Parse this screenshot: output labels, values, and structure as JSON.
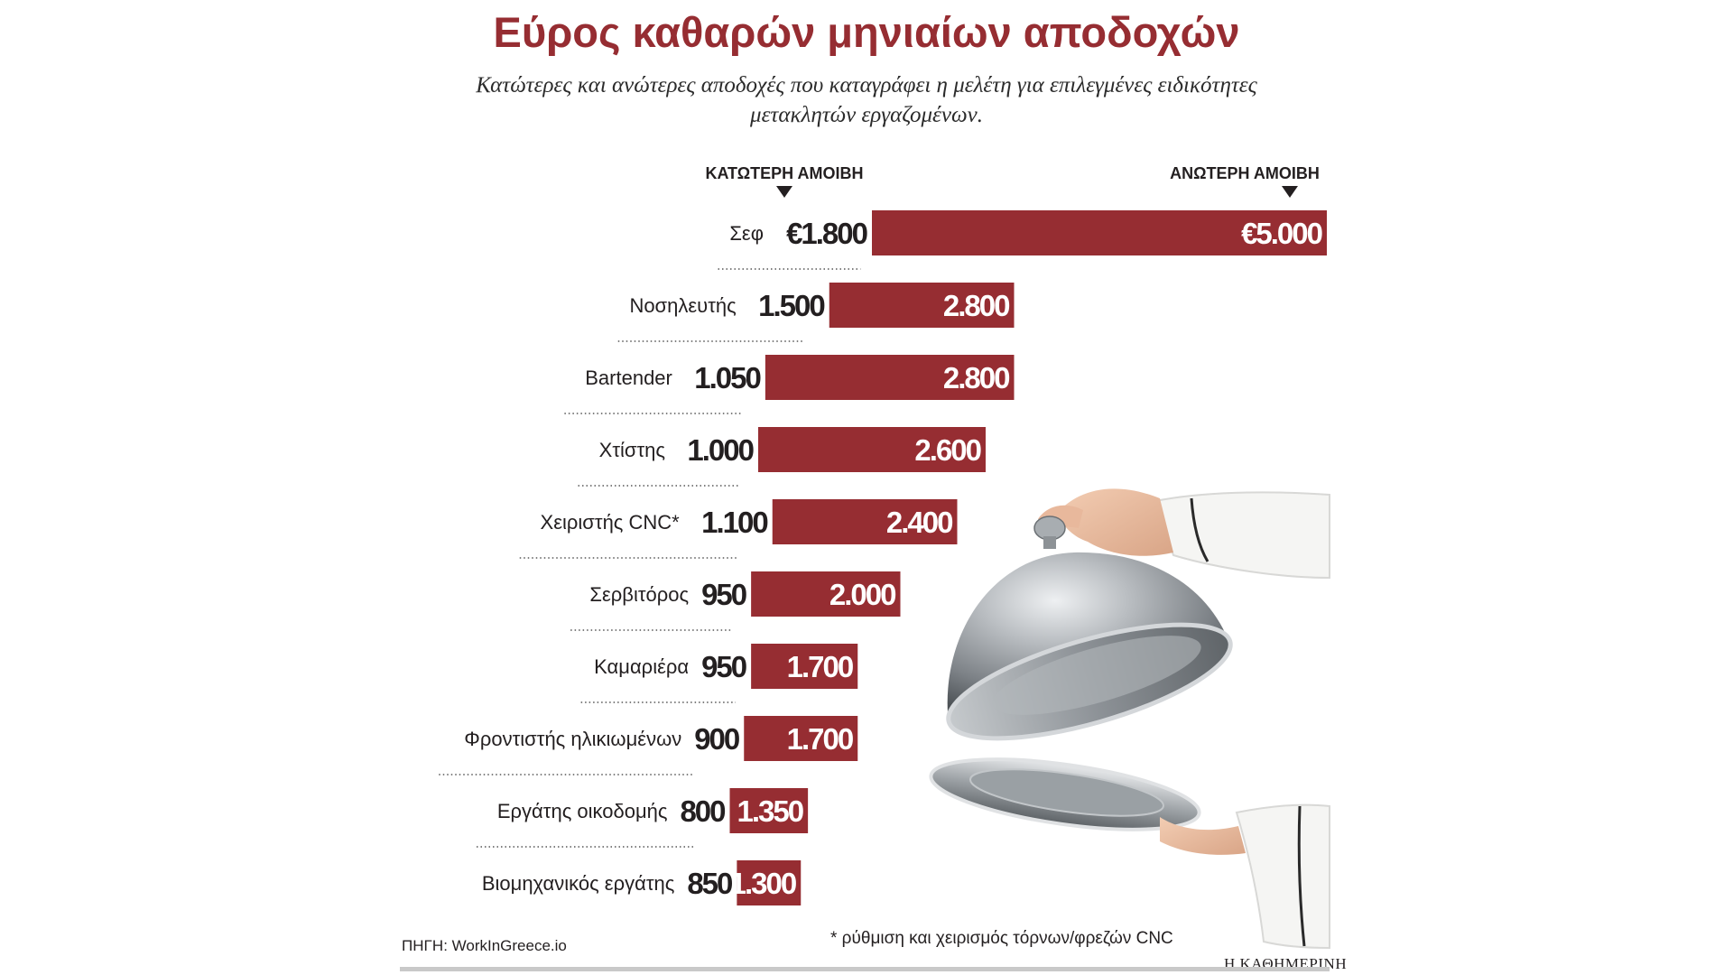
{
  "title": "Εύρος καθαρών μηνιαίων αποδοχών",
  "subtitle": "Κατώτερες και ανώτερες αποδοχές που καταγράφει η μελέτη για επιλεγμένες ειδικότητες μετακλητών εργαζομένων.",
  "source": "ΠΗΓΗ: WorkInGreece.io",
  "footnote": "* ρύθμιση και χειρισμός τόρνων/φρεζών CNC",
  "brand": "Η ΚΑΘΗΜΕΡΙΝΗ",
  "colors": {
    "bar": "#962d32",
    "title": "#962d32"
  },
  "illustration": "hand-lifting-silver-cloche-icon",
  "chart_data": {
    "type": "bar",
    "orientation": "horizontal-range",
    "low_header": "ΚΑΤΩΤΕΡΗ ΑΜΟΙΒΗ",
    "high_header": "ΑΝΩΤΕΡΗ ΑΜΟΙΒΗ",
    "categories": [
      "Σεφ",
      "Νοσηλευτής",
      "Bartender",
      "Χτίστης",
      "Χειριστής CNC*",
      "Σερβιτόρος",
      "Καμαριέρα",
      "Φροντιστής ηλικιωμένων",
      "Εργάτης οικοδομής",
      "Βιομηχανικός εργάτης"
    ],
    "series": [
      {
        "name": "ΚΑΤΩΤΕΡΗ ΑΜΟΙΒΗ",
        "values": [
          1800,
          1500,
          1050,
          1000,
          1100,
          950,
          950,
          900,
          800,
          850
        ]
      },
      {
        "name": "ΑΝΩΤΕΡΗ ΑΜΟΙΒΗ",
        "values": [
          5000,
          2800,
          2800,
          2600,
          2400,
          2000,
          1700,
          1700,
          1350,
          1300
        ]
      }
    ],
    "low_labels": [
      "€1.800",
      "1.500",
      "1.050",
      "1.000",
      "1.100",
      "950",
      "950",
      "900",
      "800",
      "850"
    ],
    "high_labels": [
      "€5.000",
      "2.800",
      "2.800",
      "2.600",
      "2.400",
      "2.000",
      "1.700",
      "1.700",
      "1.350",
      "1.300"
    ],
    "unit": "€",
    "xlim": [
      0,
      5000
    ]
  }
}
